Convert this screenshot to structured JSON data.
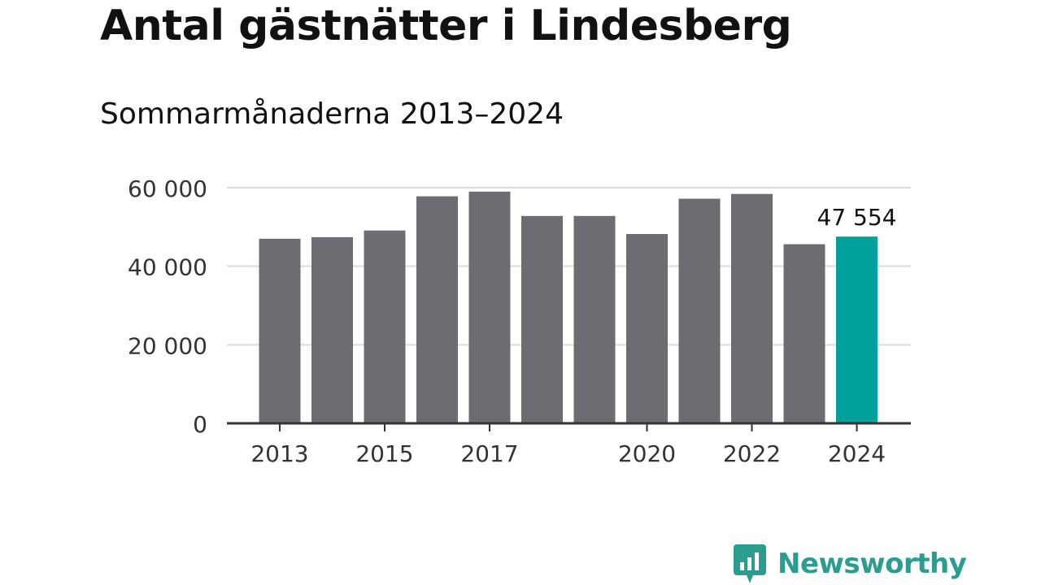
{
  "header": {
    "title": "Antal gästnätter i Lindesberg",
    "subtitle": "Sommarmånaderna 2013–2024"
  },
  "brand": {
    "name": "Newsworthy",
    "color": "#2a9d8f"
  },
  "colors": {
    "bar": "#6d6c72",
    "highlight": "#00a19a",
    "grid": "#dcdcdc",
    "axis": "#333333"
  },
  "chart_data": {
    "type": "bar",
    "title": "Antal gästnätter i Lindesberg",
    "subtitle": "Sommarmånaderna 2013–2024",
    "categories": [
      "2013",
      "2014",
      "2015",
      "2016",
      "2017",
      "2018",
      "2019",
      "2020",
      "2021",
      "2022",
      "2023",
      "2024"
    ],
    "values": [
      47000,
      47400,
      49100,
      57800,
      59000,
      52800,
      52800,
      48200,
      57200,
      58400,
      45600,
      47554
    ],
    "highlight_index": 11,
    "data_labels": [
      {
        "index": 11,
        "text": "47 554"
      }
    ],
    "ylim": [
      0,
      60000
    ],
    "yticks": [
      0,
      20000,
      40000,
      60000
    ],
    "ytick_labels": [
      "0",
      "20 000",
      "40 000",
      "60 000"
    ],
    "xtick_labels": [
      {
        "index": 0,
        "text": "2013"
      },
      {
        "index": 2,
        "text": "2015"
      },
      {
        "index": 4,
        "text": "2017"
      },
      {
        "index": 7,
        "text": "2020"
      },
      {
        "index": 9,
        "text": "2022"
      },
      {
        "index": 11,
        "text": "2024"
      }
    ],
    "xlabel": "",
    "ylabel": "",
    "grid": true
  }
}
